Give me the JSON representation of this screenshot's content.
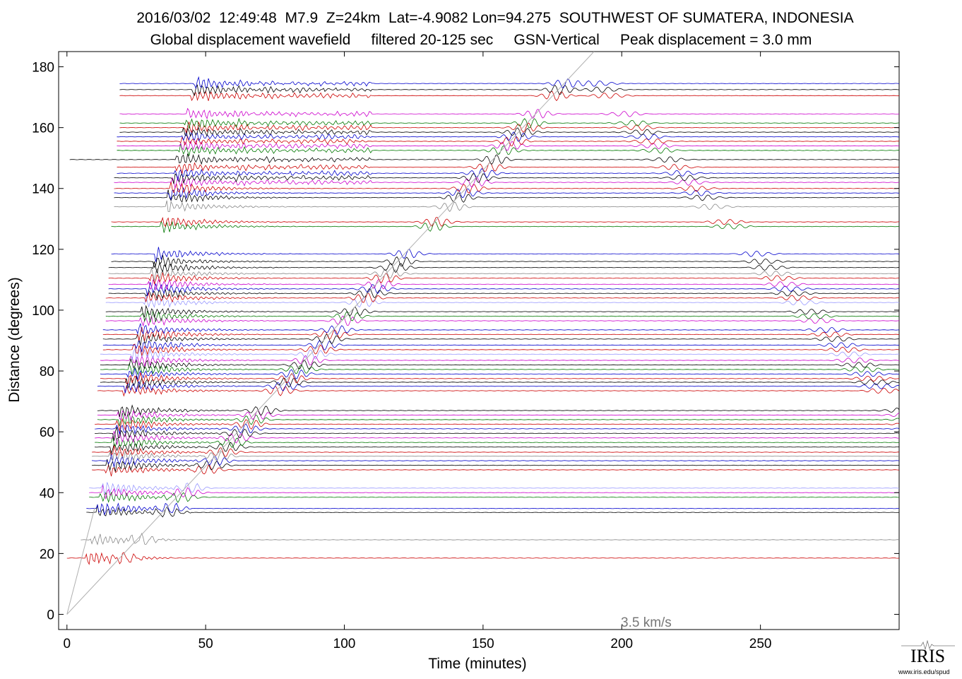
{
  "title_line_1": "2016/03/02  12:49:48  M7.9  Z=24km  Lat=-4.9082 Lon=94.275  SOUTHWEST OF SUMATERA, INDONESIA",
  "title_line_2": "Global displacement wavefield     filtered 20-125 sec     GSN-Vertical     Peak displacement = 3.0 mm",
  "logo": {
    "text": "IRIS",
    "url": "www.iris.edu/spud"
  },
  "chart_data": {
    "type": "line",
    "title": "2016/03/02  12:49:48  M7.9  Z=24km  Lat=-4.9082 Lon=94.275  SOUTHWEST OF SUMATERA, INDONESIA",
    "subtitle": "Global displacement wavefield     filtered 20-125 sec     GSN-Vertical     Peak displacement = 3.0 mm",
    "xlabel": "Time (minutes)",
    "ylabel": "Distance (degrees)",
    "xlim": [
      -3,
      300
    ],
    "ylim": [
      -5,
      185
    ],
    "xticks": [
      0,
      50,
      100,
      150,
      200,
      250
    ],
    "yticks": [
      0,
      20,
      40,
      60,
      80,
      100,
      120,
      140,
      160,
      180
    ],
    "grid": false,
    "reference_line": {
      "label": "3.5 km/s",
      "points": [
        [
          0,
          0
        ],
        [
          190,
          185
        ]
      ]
    },
    "series_colors": [
      "#000000",
      "#cc0000",
      "#0000cc",
      "#007700",
      "#cc00cc",
      "#888888",
      "#9999ff"
    ],
    "traces": [
      {
        "distance": 18.5,
        "color": "#cc0000",
        "start": 0
      },
      {
        "distance": 24.5,
        "color": "#888888",
        "start": 5
      },
      {
        "distance": 33.5,
        "color": "#000000",
        "start": 7
      },
      {
        "distance": 34.8,
        "color": "#0000cc",
        "start": 7
      },
      {
        "distance": 38.5,
        "color": "#007700",
        "start": 8
      },
      {
        "distance": 40.0,
        "color": "#cc00cc",
        "start": 8
      },
      {
        "distance": 41.5,
        "color": "#9999ff",
        "start": 8
      },
      {
        "distance": 47.5,
        "color": "#cc0000",
        "start": 9
      },
      {
        "distance": 49.0,
        "color": "#000000",
        "start": 9
      },
      {
        "distance": 50.5,
        "color": "#0000cc",
        "start": 9
      },
      {
        "distance": 52.0,
        "color": "#888888",
        "start": 9
      },
      {
        "distance": 53.3,
        "color": "#cc0000",
        "start": 9
      },
      {
        "distance": 55.0,
        "color": "#000000",
        "start": 10
      },
      {
        "distance": 56.5,
        "color": "#007700",
        "start": 10
      },
      {
        "distance": 58.0,
        "color": "#cc00cc",
        "start": 10
      },
      {
        "distance": 59.5,
        "color": "#000000",
        "start": 10
      },
      {
        "distance": 61.0,
        "color": "#0000cc",
        "start": 10
      },
      {
        "distance": 62.5,
        "color": "#cc0000",
        "start": 10
      },
      {
        "distance": 64.0,
        "color": "#007700",
        "start": 11
      },
      {
        "distance": 65.5,
        "color": "#cc00cc",
        "start": 11
      },
      {
        "distance": 67.0,
        "color": "#000000",
        "start": 11
      },
      {
        "distance": 73.5,
        "color": "#cc0000",
        "start": 11
      },
      {
        "distance": 75.0,
        "color": "#0000cc",
        "start": 11
      },
      {
        "distance": 76.3,
        "color": "#000000",
        "start": 12
      },
      {
        "distance": 77.5,
        "color": "#cc0000",
        "start": 12
      },
      {
        "distance": 79.0,
        "color": "#0000cc",
        "start": 12
      },
      {
        "distance": 80.5,
        "color": "#007700",
        "start": 12
      },
      {
        "distance": 82.0,
        "color": "#000000",
        "start": 12
      },
      {
        "distance": 83.5,
        "color": "#cc00cc",
        "start": 12
      },
      {
        "distance": 85.5,
        "color": "#9999ff",
        "start": 12
      },
      {
        "distance": 87.0,
        "color": "#cc0000",
        "start": 13
      },
      {
        "distance": 88.5,
        "color": "#0000cc",
        "start": 13
      },
      {
        "distance": 90.5,
        "color": "#000000",
        "start": 13
      },
      {
        "distance": 92.0,
        "color": "#cc0000",
        "start": 13
      },
      {
        "distance": 93.5,
        "color": "#0000cc",
        "start": 13
      },
      {
        "distance": 96.5,
        "color": "#cc00cc",
        "start": 14
      },
      {
        "distance": 98.0,
        "color": "#007700",
        "start": 14
      },
      {
        "distance": 99.5,
        "color": "#000000",
        "start": 14
      },
      {
        "distance": 102.5,
        "color": "#9999ff",
        "start": 14
      },
      {
        "distance": 104.0,
        "color": "#cc0000",
        "start": 14
      },
      {
        "distance": 105.5,
        "color": "#000000",
        "start": 15
      },
      {
        "distance": 107.0,
        "color": "#0000cc",
        "start": 15
      },
      {
        "distance": 108.5,
        "color": "#cc00cc",
        "start": 15
      },
      {
        "distance": 110.5,
        "color": "#cc0000",
        "start": 15
      },
      {
        "distance": 112.0,
        "color": "#888888",
        "start": 15
      },
      {
        "distance": 114.0,
        "color": "#000000",
        "start": 15
      },
      {
        "distance": 116.0,
        "color": "#000000",
        "start": 16
      },
      {
        "distance": 118.5,
        "color": "#0000cc",
        "start": 16
      },
      {
        "distance": 127.5,
        "color": "#007700",
        "start": 16
      },
      {
        "distance": 129.0,
        "color": "#cc0000",
        "start": 16
      },
      {
        "distance": 134.0,
        "color": "#888888",
        "start": 17
      },
      {
        "distance": 137.0,
        "color": "#000000",
        "start": 17
      },
      {
        "distance": 138.5,
        "color": "#0000cc",
        "start": 17
      },
      {
        "distance": 140.0,
        "color": "#cc0000",
        "start": 17
      },
      {
        "distance": 142.0,
        "color": "#cc00cc",
        "start": 17
      },
      {
        "distance": 143.5,
        "color": "#000000",
        "start": 17
      },
      {
        "distance": 145.0,
        "color": "#0000cc",
        "start": 18
      },
      {
        "distance": 147.0,
        "color": "#cc0000",
        "start": 18
      },
      {
        "distance": 149.5,
        "color": "#000000",
        "start": 1
      },
      {
        "distance": 152.5,
        "color": "#007700",
        "start": 18
      },
      {
        "distance": 154.0,
        "color": "#cc00cc",
        "start": 18
      },
      {
        "distance": 155.5,
        "color": "#cc0000",
        "start": 18
      },
      {
        "distance": 157.0,
        "color": "#0000cc",
        "start": 18
      },
      {
        "distance": 158.5,
        "color": "#000000",
        "start": 19
      },
      {
        "distance": 160.0,
        "color": "#cc0000",
        "start": 19
      },
      {
        "distance": 161.5,
        "color": "#007700",
        "start": 19
      },
      {
        "distance": 164.5,
        "color": "#cc00cc",
        "start": 19
      },
      {
        "distance": 170.5,
        "color": "#cc0000",
        "start": 19
      },
      {
        "distance": 172.5,
        "color": "#000000",
        "start": 19
      },
      {
        "distance": 174.5,
        "color": "#0000cc",
        "start": 19
      }
    ]
  }
}
